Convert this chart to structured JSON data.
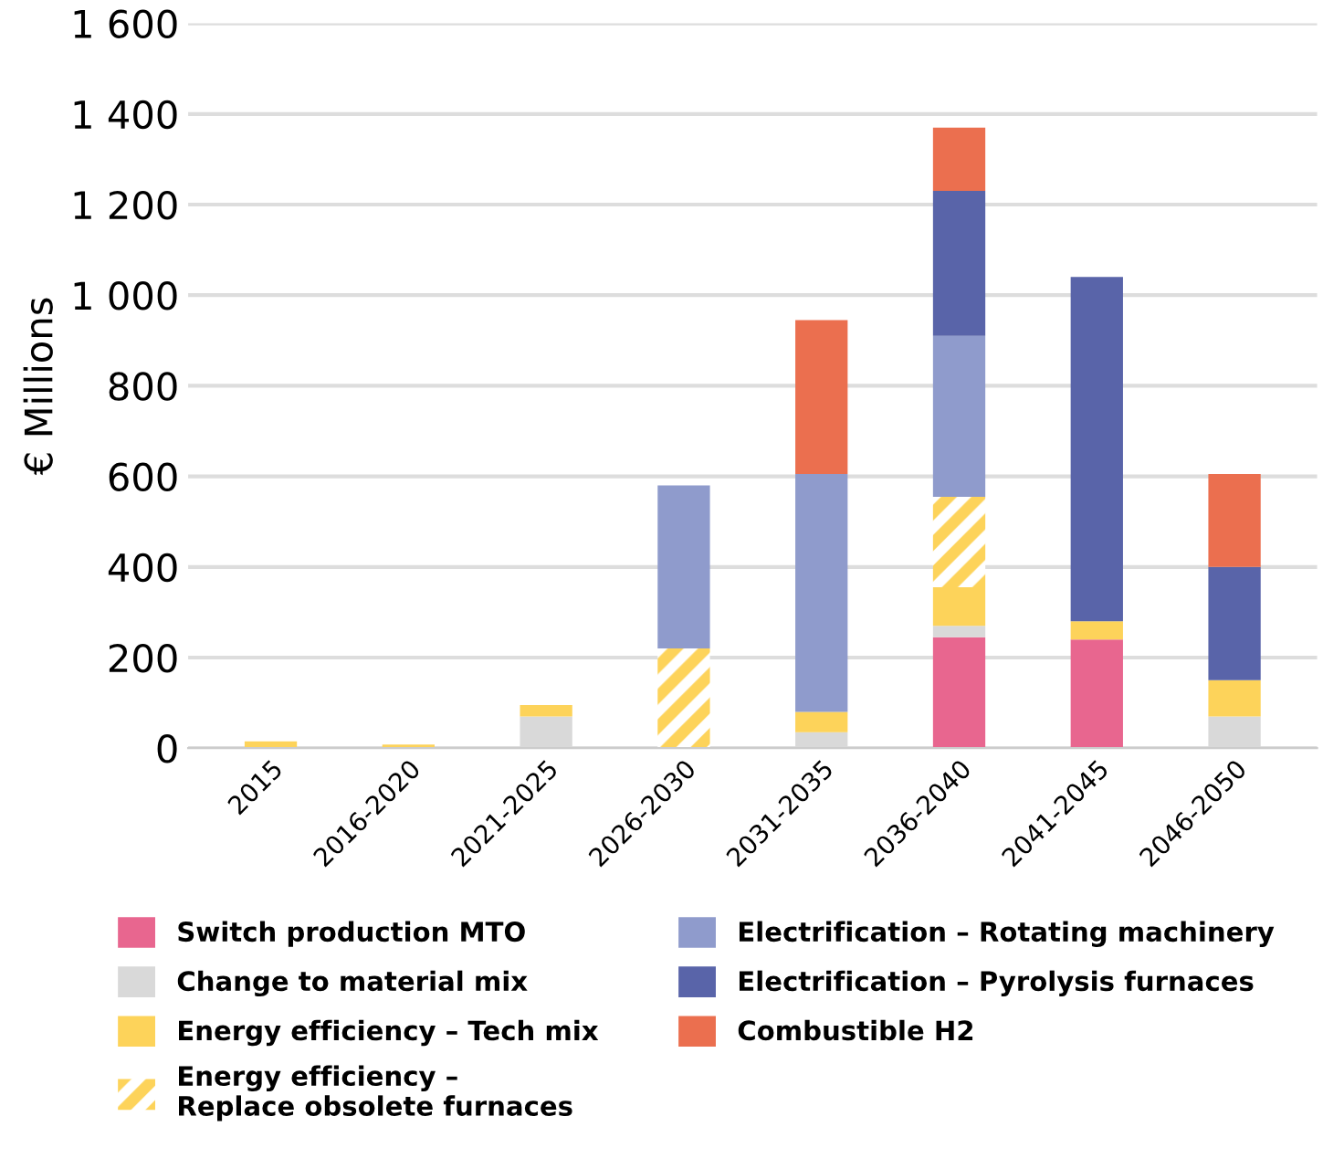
{
  "chart_data": {
    "type": "bar",
    "stacked": true,
    "ylabel": "€ Millions",
    "categories": [
      "2015",
      "2016-2020",
      "2021-2025",
      "2026-2030",
      "2031-2035",
      "2036-2040",
      "2041-2045",
      "2046-2050"
    ],
    "series": [
      {
        "name": "Switch production MTO",
        "color": "#e8668f",
        "values": [
          0,
          0,
          0,
          0,
          0,
          245,
          240,
          0
        ]
      },
      {
        "name": "Change to material mix",
        "color": "#d9d9d9",
        "values": [
          0,
          0,
          70,
          0,
          35,
          25,
          0,
          70
        ]
      },
      {
        "name": "Energy efficiency – Tech mix",
        "color": "#fdd35a",
        "values": [
          15,
          8,
          25,
          0,
          45,
          85,
          40,
          80
        ]
      },
      {
        "name": "Energy efficiency –\nReplace obsolete furnaces",
        "color": "#fdd35a",
        "values": [
          0,
          0,
          0,
          220,
          0,
          200,
          0,
          0
        ]
      },
      {
        "name": "Electrification – Rotating machinery",
        "color": "#8f9bcc",
        "values": [
          0,
          0,
          0,
          360,
          525,
          355,
          0,
          0
        ]
      },
      {
        "name": "Electrification – Pyrolysis furnaces",
        "color": "#5964a9",
        "values": [
          0,
          0,
          0,
          0,
          0,
          320,
          760,
          250
        ]
      },
      {
        "name": "Combustible H2",
        "color": "#eb6f4f",
        "values": [
          0,
          0,
          0,
          0,
          340,
          140,
          0,
          205
        ]
      }
    ],
    "ylim": [
      0,
      1600
    ],
    "yticks": [
      0,
      200,
      400,
      600,
      800,
      {
        "value": 1000,
        "label": "1 000"
      },
      {
        "value": 1200,
        "label": "1 200"
      },
      {
        "value": 1400,
        "label": "1 400"
      },
      {
        "value": 1600,
        "label": "1 600"
      }
    ],
    "grid": "y",
    "legend": "bottom"
  }
}
